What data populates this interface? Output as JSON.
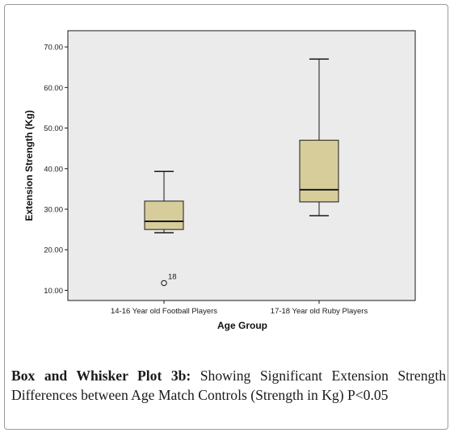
{
  "chart_data": {
    "type": "boxplot",
    "xlabel": "Age Group",
    "ylabel": "Extension Strength (Kg)",
    "ylim": [
      7.5,
      74
    ],
    "yticks": [
      "10.00",
      "20.00",
      "30.00",
      "40.00",
      "50.00",
      "60.00",
      "70.00"
    ],
    "ytick_values": [
      10,
      20,
      30,
      40,
      50,
      60,
      70
    ],
    "grid": false,
    "colors": {
      "box_fill": "#d6cd9b",
      "plot_background": "#ebebeb",
      "line": "#1a1a1a"
    },
    "categories": [
      "14-16 Year old Football Players",
      "17-18 Year old Ruby Players"
    ],
    "boxes": [
      {
        "category": "14-16 Year old Football Players",
        "whisker_low": 24.2,
        "q1": 25.0,
        "median": 27.0,
        "q3": 32.0,
        "whisker_high": 39.3,
        "outliers": [
          {
            "value": 11.8,
            "label": "18"
          }
        ]
      },
      {
        "category": "17-18 Year old Ruby Players",
        "whisker_low": 28.4,
        "q1": 31.8,
        "median": 34.8,
        "q3": 47.0,
        "whisker_high": 67.0,
        "outliers": []
      }
    ]
  },
  "caption": {
    "label": "Box and Whisker Plot 3b:",
    "text": " Showing Significant Extension Strength Differences between Age Match Controls (Strength in Kg) P<0.05"
  }
}
